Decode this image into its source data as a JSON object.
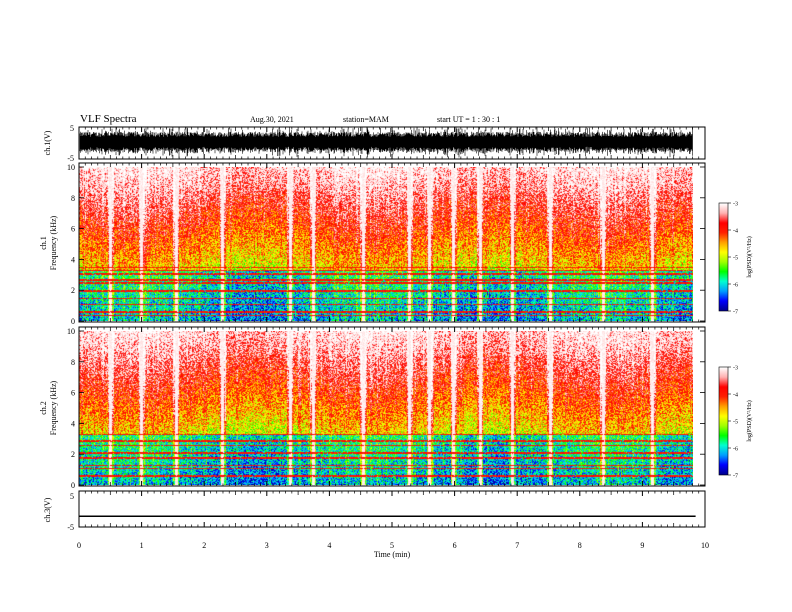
{
  "header": {
    "title": "VLF Spectra",
    "date": "Aug.30, 2021",
    "station": "station=MAM",
    "start": "start  UT =   1 : 30 : 1"
  },
  "colorbar": {
    "label": "log(PSD)(V²/Hz)",
    "ticks": [
      "-3",
      "-4",
      "-5",
      "-6",
      "-7"
    ],
    "colormap": [
      "#00008f",
      "#0000ff",
      "#00a0ff",
      "#00ffd0",
      "#00ff00",
      "#a0ff00",
      "#ffff00",
      "#ffa000",
      "#ff2000",
      "#ff0000",
      "#ffb0b0",
      "#ffffff"
    ]
  },
  "chart_data": [
    {
      "type": "line",
      "panel": "waveform ch.1",
      "ylabel": "ch.1(V)",
      "ylim": [
        -5,
        5
      ],
      "yticks": [
        "5",
        "-5"
      ],
      "xlim": [
        0,
        10
      ],
      "description_values": {
        "amplitude_range_V": [
          -5,
          5
        ]
      }
    },
    {
      "type": "heatmap",
      "panel": "spectrogram ch.1",
      "ylabel_line1": "ch.1",
      "ylabel_line2": "Frequency (kHz)",
      "ylim": [
        0,
        10
      ],
      "yticks": [
        "0",
        "2",
        "4",
        "6",
        "8",
        "10"
      ],
      "xlim": [
        0,
        9.85
      ],
      "zlim": [
        -7,
        -3
      ],
      "vertical_sferics_min": [
        0.5,
        1.0,
        1.55,
        2.3,
        3.38,
        3.75,
        4.55,
        5.3,
        5.62,
        6.0,
        6.43,
        6.95,
        7.55,
        8.4,
        9.2
      ],
      "horizontal_lines_kHz": [
        0.4,
        0.6,
        1.1,
        1.5,
        2.0,
        2.5,
        2.7,
        3.1,
        3.3,
        3.5
      ]
    },
    {
      "type": "heatmap",
      "panel": "spectrogram ch.2",
      "ylabel_line1": "ch.2",
      "ylabel_line2": "Frequency (kHz)",
      "ylim": [
        0,
        10
      ],
      "yticks": [
        "0",
        "2",
        "4",
        "6",
        "8",
        "10"
      ],
      "xlim": [
        0,
        9.85
      ],
      "zlim": [
        -7,
        -3
      ],
      "vertical_sferics_min": [
        0.5,
        1.0,
        1.55,
        2.3,
        3.38,
        3.75,
        4.55,
        5.3,
        5.62,
        6.0,
        6.43,
        6.95,
        7.55,
        8.4,
        9.2
      ],
      "horizontal_lines_kHz": [
        0.6,
        1.1,
        1.3,
        1.8,
        2.1,
        2.6,
        2.9,
        3.3
      ]
    },
    {
      "type": "line",
      "panel": "waveform ch.3",
      "ylabel": "ch.3(V)",
      "ylim": [
        -5,
        5
      ],
      "yticks": [
        "5",
        "-5"
      ],
      "xlim": [
        0,
        10
      ],
      "x": [
        0,
        9.85
      ],
      "y": [
        -2,
        -2
      ]
    }
  ],
  "xaxis": {
    "label": "Time  (min)",
    "ticks": [
      "0",
      "1",
      "2",
      "3",
      "4",
      "5",
      "6",
      "7",
      "8",
      "9",
      "10"
    ],
    "xlim": [
      0,
      10
    ]
  }
}
